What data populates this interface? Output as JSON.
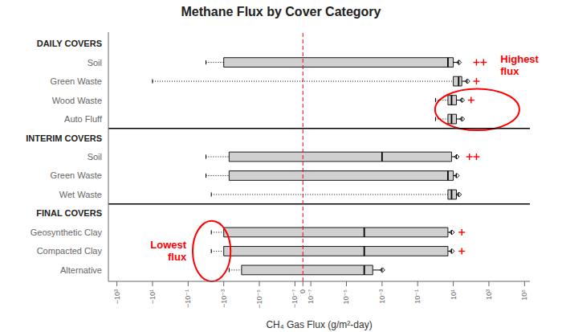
{
  "chart_data": {
    "type": "boxplot",
    "title": "Methane Flux by Cover Category",
    "x_label": "CH₄ Gas Flux (g/m²-day)",
    "log": "x",
    "linthresh": 1e-07,
    "linscale": 0.4,
    "xlim": [
      -3000,
      200000
    ],
    "xticks": [
      {
        "value": -1000,
        "label": "−10³"
      },
      {
        "value": -10,
        "label": "−10¹"
      },
      {
        "value": -0.1,
        "label": "−10⁻¹"
      },
      {
        "value": -0.001,
        "label": "−10⁻³"
      },
      {
        "value": -1e-05,
        "label": "−10⁻⁵"
      },
      {
        "value": -1e-07,
        "label": "−10⁻⁷"
      },
      0,
      {
        "value": 1e-07,
        "label": "10⁻⁷"
      },
      {
        "value": 1e-05,
        "label": "10⁻⁵"
      },
      {
        "value": 0.001,
        "label": "10⁻³"
      },
      {
        "value": 0.1,
        "label": "10⁻¹"
      },
      {
        "value": 10,
        "label": "10¹"
      },
      {
        "value": 1000,
        "label": "10³"
      },
      {
        "value": 100000,
        "label": "10⁵"
      }
    ],
    "grid": false,
    "color": "#d0d0d0",
    "flier_color": "#ff0000",
    "separator_color": "#000000",
    "reference_lines": [
      {
        "x": 0,
        "color": "#ff0000",
        "line_style": "dashed"
      }
    ],
    "annotations": [
      {
        "text": "Highest\nflux",
        "color": "#ff0000"
      },
      {
        "text": "Lowest\nflux",
        "color": "#ff0000"
      }
    ],
    "groups": [
      {
        "name": "DAILY COVERS",
        "rows": [
          {
            "category": "Soil",
            "whislo": -0.01,
            "q1": -0.001,
            "median": 5.0,
            "q3": 10.0,
            "whishi": 20.0,
            "diamond": 21.0,
            "fliers": [
              200.0,
              500.0
            ]
          },
          {
            "category": "Green Waste",
            "whislo": -10.0,
            "q1": 10.0,
            "median": 20.0,
            "q3": 30.0,
            "whishi": 60.0,
            "diamond": 63.0,
            "fliers": [
              200.0
            ]
          },
          {
            "category": "Wood Waste",
            "whislo": 1.0,
            "q1": 5.0,
            "median": 8.0,
            "q3": 15.0,
            "whishi": 30.0,
            "diamond": 31.5,
            "fliers": [
              100.0
            ]
          },
          {
            "category": "Auto Fluff",
            "whislo": 1.0,
            "q1": 5.0,
            "median": 8.0,
            "q3": 15.0,
            "whishi": 30.0,
            "diamond": 31.5,
            "fliers": []
          }
        ]
      },
      {
        "name": "INTERIM COVERS",
        "rows": [
          {
            "category": "Soil",
            "whislo": -0.01,
            "q1": -0.0005,
            "median": 0.001,
            "q3": 8.0,
            "whishi": 15.0,
            "diamond": 15.75,
            "fliers": [
              80.0,
              200.0
            ]
          },
          {
            "category": "Green Waste",
            "whislo": -0.01,
            "q1": -0.0005,
            "median": 5.0,
            "q3": 10.0,
            "whishi": 15.0,
            "diamond": 15.75,
            "fliers": []
          },
          {
            "category": "Wet Waste",
            "whislo": -0.005,
            "q1": 5.0,
            "median": 8.0,
            "q3": 15.0,
            "whishi": 20.0,
            "diamond": 21.0,
            "fliers": []
          }
        ]
      },
      {
        "name": "FINAL COVERS",
        "rows": [
          {
            "category": "Geosynthetic Clay",
            "whislo": -0.005,
            "q1": -0.001,
            "median": 0.0001,
            "q3": 5.0,
            "whishi": 8.0,
            "diamond": 8.4,
            "fliers": [
              30.0
            ]
          },
          {
            "category": "Compacted Clay",
            "whislo": -0.005,
            "q1": -0.001,
            "median": 0.0001,
            "q3": 5.0,
            "whishi": 8.0,
            "diamond": 8.4,
            "fliers": [
              30.0
            ]
          },
          {
            "category": "Alternative",
            "whislo": -0.0005,
            "q1": -0.0001,
            "median": 0.0001,
            "q3": 0.0003,
            "whishi": 0.001,
            "diamond": 0.00105,
            "fliers": []
          }
        ]
      }
    ]
  }
}
